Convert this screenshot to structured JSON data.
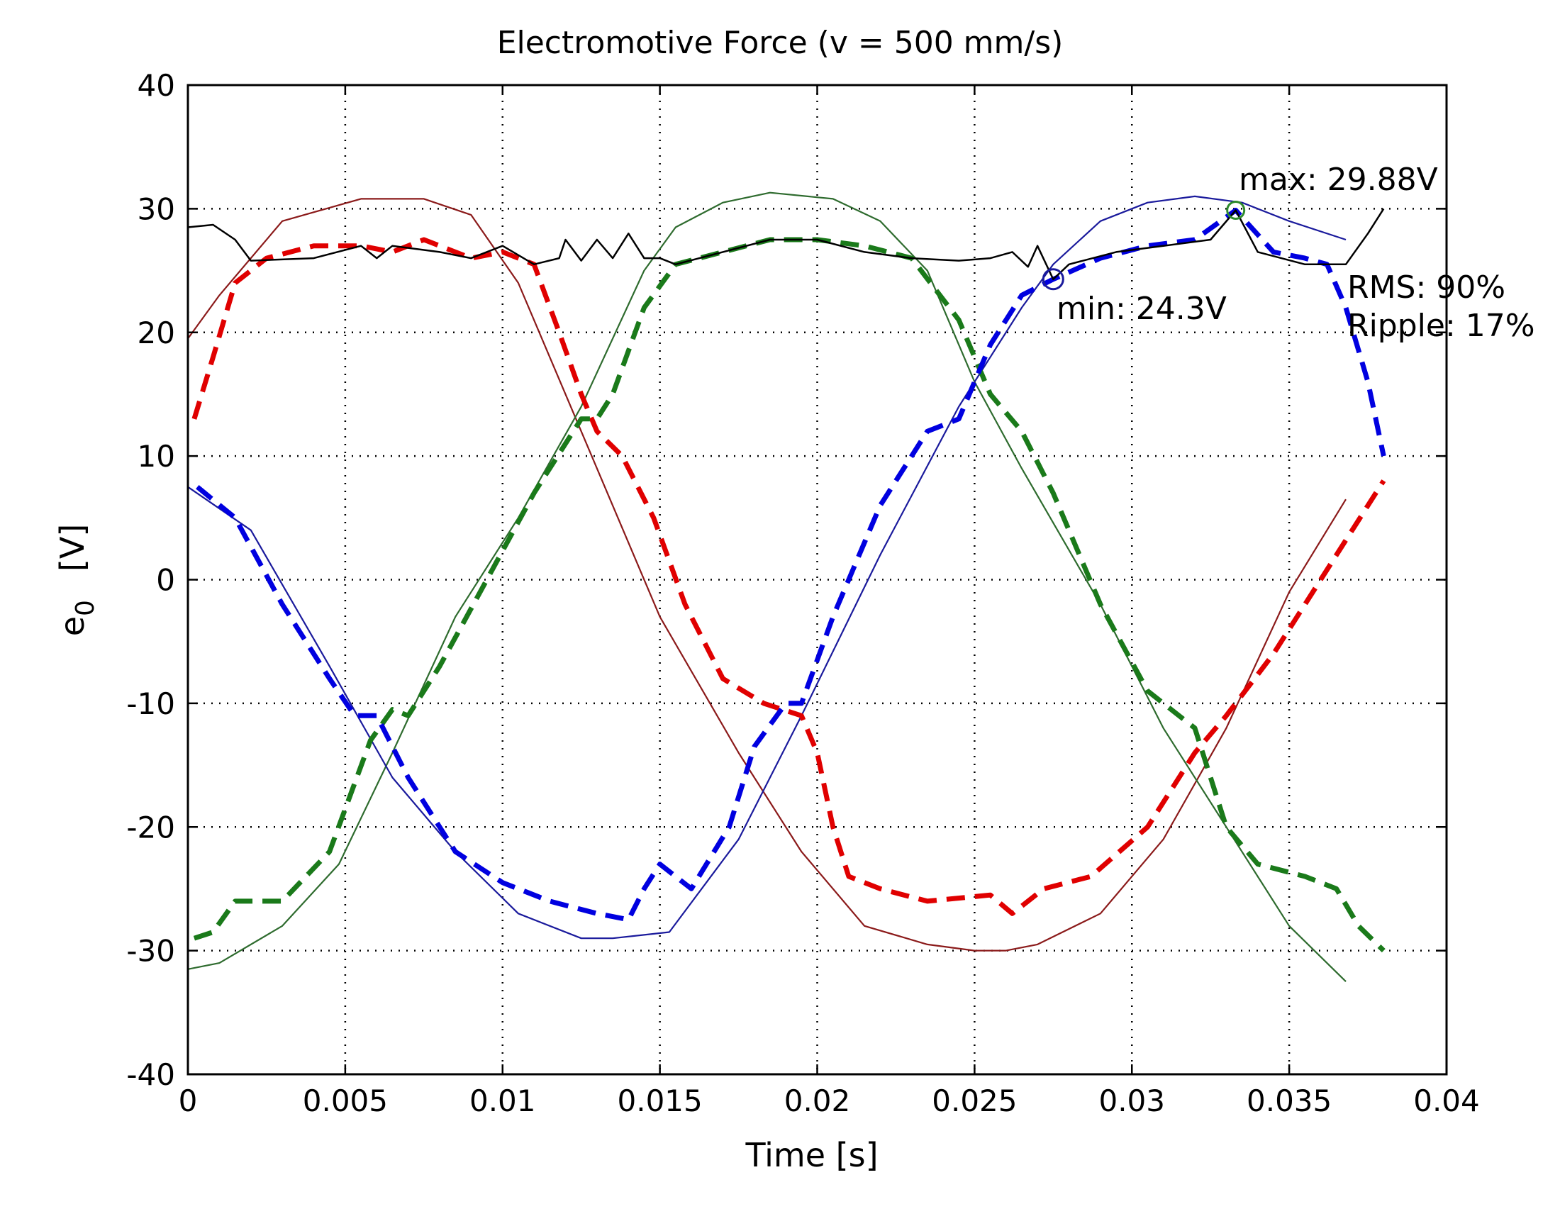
{
  "chart_data": {
    "type": "line",
    "title": "Electromotive Force (v = 500 mm/s)",
    "xlabel": "Time [s]",
    "ylabel_main": "e",
    "ylabel_sub": "0",
    "ylabel_unit": "[V]",
    "xlim": [
      0,
      0.04
    ],
    "ylim": [
      -40,
      40
    ],
    "xticks": [
      0,
      0.005,
      0.01,
      0.015,
      0.02,
      0.025,
      0.03,
      0.035,
      0.04
    ],
    "xtick_labels": [
      "0",
      "0.005",
      "0.01",
      "0.015",
      "0.02",
      "0.025",
      "0.03",
      "0.035",
      "0.04"
    ],
    "yticks": [
      -40,
      -30,
      -20,
      -10,
      0,
      10,
      20,
      30,
      40
    ],
    "ytick_labels": [
      "-40",
      "-30",
      "-20",
      "-10",
      "0",
      "10",
      "20",
      "30",
      "40"
    ],
    "grid": true,
    "colors": {
      "red_smooth": "#8b1a1a",
      "red_dashed": "#e00000",
      "green_smooth": "#2e6b2e",
      "green_dashed": "#1a7a1a",
      "blue_smooth": "#1a1a9c",
      "blue_dashed": "#0000e0",
      "envelope": "#000000"
    },
    "series": [
      {
        "key": "red_smooth",
        "style": "solid",
        "x": [
          0,
          0.001,
          0.003,
          0.0055,
          0.0075,
          0.009,
          0.0105,
          0.0125,
          0.015,
          0.0175,
          0.0195,
          0.0215,
          0.0235,
          0.025,
          0.026,
          0.027,
          0.029,
          0.031,
          0.033,
          0.035,
          0.0368
        ],
        "y": [
          19.5,
          23,
          29,
          30.8,
          30.8,
          29.5,
          24,
          12,
          -3,
          -14,
          -22,
          -28,
          -29.5,
          -30,
          -30,
          -29.5,
          -27,
          -21,
          -12,
          -1,
          6.5
        ]
      },
      {
        "key": "green_smooth",
        "style": "solid",
        "x": [
          0,
          0.001,
          0.003,
          0.0048,
          0.0065,
          0.0085,
          0.0105,
          0.0125,
          0.0145,
          0.0155,
          0.017,
          0.0185,
          0.0205,
          0.022,
          0.0235,
          0.025,
          0.0265,
          0.029,
          0.031,
          0.033,
          0.035,
          0.0368
        ],
        "y": [
          -31.5,
          -31,
          -28,
          -23,
          -14,
          -3,
          5,
          14,
          25,
          28.5,
          30.5,
          31.3,
          30.8,
          29,
          25,
          16,
          9,
          -2,
          -12,
          -20,
          -28,
          -32.5
        ]
      },
      {
        "key": "blue_smooth",
        "style": "solid",
        "x": [
          0,
          0.002,
          0.0045,
          0.0065,
          0.0085,
          0.0105,
          0.0125,
          0.0135,
          0.0153,
          0.0175,
          0.0195,
          0.022,
          0.0245,
          0.0265,
          0.0275,
          0.029,
          0.0305,
          0.032,
          0.0335,
          0.035,
          0.0368
        ],
        "y": [
          7.5,
          4,
          -7,
          -16,
          -22,
          -27,
          -29,
          -29,
          -28.5,
          -21,
          -11,
          2,
          14,
          22,
          25.5,
          29,
          30.5,
          31,
          30.5,
          29,
          27.5
        ]
      },
      {
        "key": "red_dashed",
        "style": "dashed",
        "x": [
          0.0002,
          0.0008,
          0.0015,
          0.0025,
          0.004,
          0.0055,
          0.0065,
          0.0075,
          0.009,
          0.01,
          0.011,
          0.0118,
          0.0125,
          0.013,
          0.0138,
          0.0148,
          0.0158,
          0.017,
          0.0183,
          0.0195,
          0.02,
          0.0205,
          0.021,
          0.022,
          0.0235,
          0.0255,
          0.0262,
          0.0272,
          0.0287,
          0.0305,
          0.032,
          0.033,
          0.0345,
          0.036,
          0.0375,
          0.038
        ],
        "y": [
          13,
          18,
          24,
          26,
          27,
          27,
          26.5,
          27.5,
          26,
          26.5,
          25.5,
          20,
          15,
          12,
          10,
          5,
          -2,
          -8,
          -10,
          -11,
          -14,
          -20,
          -24,
          -25,
          -26,
          -25.5,
          -27,
          -25,
          -24,
          -20,
          -14,
          -11,
          -6,
          0,
          6,
          8
        ]
      },
      {
        "key": "green_dashed",
        "style": "dashed",
        "x": [
          0.0002,
          0.0008,
          0.0015,
          0.003,
          0.0045,
          0.0058,
          0.0065,
          0.007,
          0.008,
          0.0095,
          0.011,
          0.0125,
          0.013,
          0.0135,
          0.0145,
          0.0155,
          0.017,
          0.0185,
          0.02,
          0.0215,
          0.023,
          0.0245,
          0.0255,
          0.0265,
          0.0275,
          0.029,
          0.0305,
          0.032,
          0.0325,
          0.033,
          0.034,
          0.0355,
          0.0365,
          0.0372,
          0.038
        ],
        "y": [
          -29,
          -28.5,
          -26,
          -26,
          -22,
          -13,
          -10.5,
          -11,
          -7,
          0,
          7,
          13,
          13,
          15,
          22,
          25.5,
          26.5,
          27.5,
          27.5,
          27,
          26,
          21,
          15,
          12,
          7,
          -2,
          -9,
          -12,
          -16,
          -20,
          -23,
          -24,
          -25,
          -28,
          -30
        ]
      },
      {
        "key": "blue_dashed",
        "style": "dashed",
        "x": [
          0.0003,
          0.0015,
          0.003,
          0.0045,
          0.0053,
          0.006,
          0.007,
          0.0085,
          0.01,
          0.0115,
          0.013,
          0.014,
          0.0145,
          0.015,
          0.016,
          0.0172,
          0.018,
          0.019,
          0.0195,
          0.0205,
          0.022,
          0.0235,
          0.0245,
          0.0255,
          0.0265,
          0.0275,
          0.029,
          0.0305,
          0.032,
          0.0333,
          0.0345,
          0.0355,
          0.0362,
          0.0368,
          0.0375,
          0.038
        ],
        "y": [
          7.5,
          5,
          -2,
          -8,
          -11,
          -11,
          -16,
          -22,
          -24.5,
          -26,
          -27,
          -27.5,
          -25,
          -23,
          -25,
          -20,
          -13.5,
          -10,
          -10,
          -3,
          6,
          12,
          13,
          19,
          23,
          24.3,
          26,
          27,
          27.5,
          29.88,
          26.5,
          26,
          25.5,
          22,
          16,
          10
        ]
      },
      {
        "key": "envelope",
        "style": "solid",
        "x": [
          0,
          0.0008,
          0.0015,
          0.002,
          0.004,
          0.0055,
          0.006,
          0.0065,
          0.008,
          0.009,
          0.01,
          0.011,
          0.0118,
          0.012,
          0.0125,
          0.013,
          0.0135,
          0.014,
          0.0145,
          0.015,
          0.0155,
          0.017,
          0.0185,
          0.02,
          0.0215,
          0.023,
          0.0245,
          0.0255,
          0.0262,
          0.0267,
          0.027,
          0.0275,
          0.028,
          0.0295,
          0.031,
          0.0325,
          0.0333,
          0.034,
          0.0355,
          0.0368,
          0.0375,
          0.038
        ],
        "y": [
          28.5,
          28.7,
          27.5,
          25.8,
          26,
          27,
          26,
          27,
          26.5,
          26,
          27,
          25.5,
          26,
          27.5,
          25.8,
          27.5,
          26,
          28,
          26,
          26,
          25.5,
          26.5,
          27.5,
          27.5,
          26.5,
          26,
          25.8,
          26,
          26.5,
          25.3,
          27,
          24.3,
          25.5,
          26.5,
          27,
          27.5,
          29.88,
          26.5,
          25.5,
          25.5,
          28,
          30
        ]
      }
    ],
    "annotations": {
      "max_label": "max: 29.88V",
      "max_point": [
        0.0333,
        29.88
      ],
      "min_label": "min: 24.3V",
      "min_point": [
        0.0275,
        24.3
      ],
      "rms_label": "RMS: 90%",
      "ripple_label": "Ripple: 17%"
    }
  }
}
